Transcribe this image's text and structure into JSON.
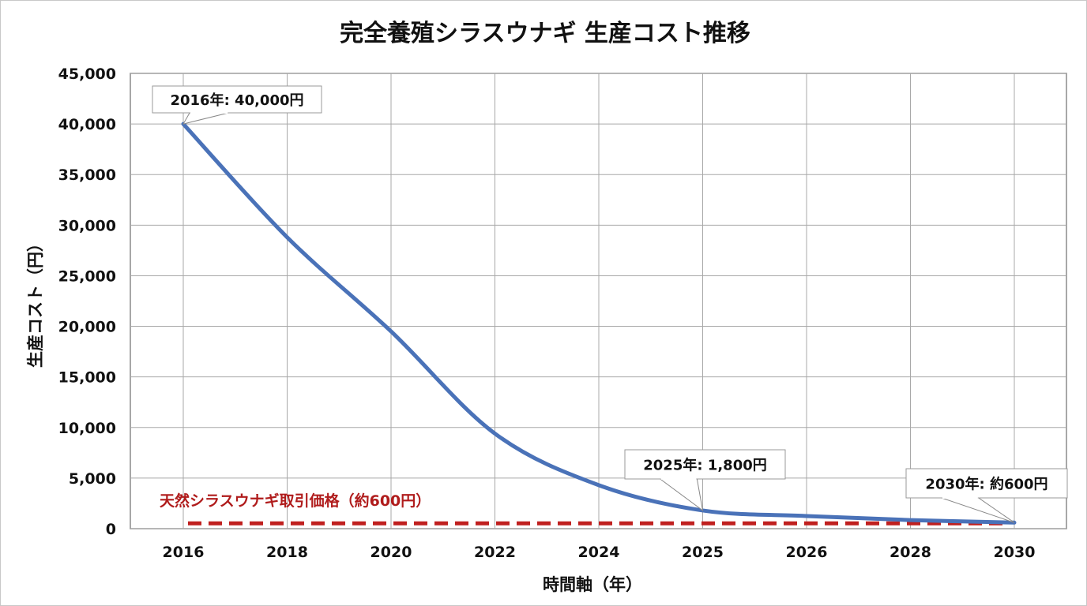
{
  "chart_data": {
    "type": "line",
    "title": "完全養殖シラスウナギ 生産コスト推移",
    "xlabel": "時間軸（年）",
    "ylabel": "生産コスト（円）",
    "categories": [
      "2016",
      "2018",
      "2020",
      "2022",
      "2024",
      "2025",
      "2026",
      "2028",
      "2030"
    ],
    "series": [
      {
        "values": [
          40000,
          28800,
          19500,
          9400,
          4300,
          1800,
          1250,
          850,
          600
        ],
        "color": "#4a72b8"
      }
    ],
    "reference_line": {
      "label": "天然シラスウナギ取引価格（約600円）",
      "value": 600,
      "color": "#c0201f",
      "style": "dashed"
    },
    "annotations": [
      {
        "category": "2016",
        "text": "2016年: 40,000円"
      },
      {
        "category": "2025",
        "text": "2025年: 1,800円"
      },
      {
        "category": "2030",
        "text": "2030年: 約600円"
      }
    ],
    "ylim": [
      0,
      45000
    ],
    "yticks": [
      "0",
      "5,000",
      "10,000",
      "15,000",
      "20,000",
      "25,000",
      "30,000",
      "35,000",
      "40,000",
      "45,000"
    ],
    "grid": true,
    "legend": "none"
  }
}
